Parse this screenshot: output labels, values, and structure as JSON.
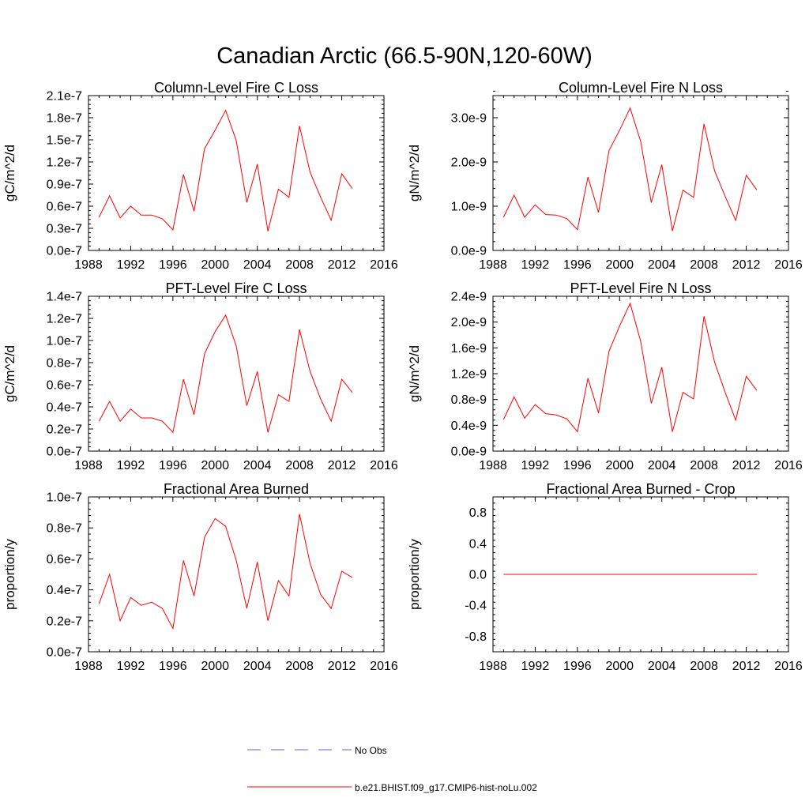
{
  "figure_title": "Canadian Arctic (66.5-90N,120-60W)",
  "legend": [
    {
      "label": "No Obs",
      "color": "#6666cc",
      "style": "dashed"
    },
    {
      "label": "b.e21.BHIST.f09_g17.CMIP6-hist-noLu.002",
      "color": "#ff0000",
      "style": "solid"
    }
  ],
  "chart_data": [
    {
      "type": "line",
      "title": "Column-Level Fire C Loss",
      "ylabel": "gC/m^2/d",
      "xlim": [
        1988,
        2016
      ],
      "xticks": [
        1988,
        1992,
        1996,
        2000,
        2004,
        2008,
        2012,
        2016
      ],
      "ylim": [
        0,
        2.1e-07
      ],
      "yticks": [
        0,
        3e-08,
        6e-08,
        9e-08,
        1.2e-07,
        1.5e-07,
        1.8e-07,
        2.1e-07
      ],
      "yticklabels": [
        "0.0e-7",
        "0.3e-7",
        "0.6e-7",
        "0.9e-7",
        "1.2e-7",
        "1.5e-7",
        "1.8e-7",
        "2.1e-7"
      ],
      "x": [
        1989,
        1990,
        1991,
        1992,
        1993,
        1994,
        1995,
        1996,
        1997,
        1998,
        1999,
        2000,
        2001,
        2002,
        2003,
        2004,
        2005,
        2006,
        2007,
        2008,
        2009,
        2010,
        2011,
        2012,
        2013
      ],
      "values": [
        4.5e-08,
        7.4e-08,
        4.4e-08,
        6e-08,
        4.8e-08,
        4.8e-08,
        4.3e-08,
        2.8e-08,
        1.03e-07,
        5.3e-08,
        1.38e-07,
        1.63e-07,
        1.9e-07,
        1.49e-07,
        6.5e-08,
        1.17e-07,
        2.6e-08,
        8.3e-08,
        7.2e-08,
        1.69e-07,
        1.06e-07,
        7.2e-08,
        4.1e-08,
        1.04e-07,
        8.4e-08
      ]
    },
    {
      "type": "line",
      "title": "Column-Level Fire N Loss",
      "ylabel": "gN/m^2/d",
      "xlim": [
        1988,
        2016
      ],
      "xticks": [
        1988,
        1992,
        1996,
        2000,
        2004,
        2008,
        2012,
        2016
      ],
      "ylim": [
        0,
        3.5e-09
      ],
      "yticks": [
        0,
        1e-09,
        2e-09,
        3e-09
      ],
      "yticklabels": [
        "0.0e-9",
        "1.0e-9",
        "2.0e-9",
        "3.0e-9"
      ],
      "x": [
        1989,
        1990,
        1991,
        1992,
        1993,
        1994,
        1995,
        1996,
        1997,
        1998,
        1999,
        2000,
        2001,
        2002,
        2003,
        2004,
        2005,
        2006,
        2007,
        2008,
        2009,
        2010,
        2011,
        2012,
        2013
      ],
      "values": [
        7.5e-10,
        1.25e-09,
        7.5e-10,
        1.03e-09,
        8.1e-10,
        8e-10,
        7.2e-10,
        4.7e-10,
        1.66e-09,
        8.6e-10,
        2.26e-09,
        2.72e-09,
        3.22e-09,
        2.46e-09,
        1.08e-09,
        1.94e-09,
        4.4e-10,
        1.36e-09,
        1.2e-09,
        2.86e-09,
        1.8e-09,
        1.22e-09,
        6.8e-10,
        1.7e-09,
        1.37e-09
      ]
    },
    {
      "type": "line",
      "title": "PFT-Level Fire C Loss",
      "ylabel": "gC/m^2/d",
      "xlim": [
        1988,
        2016
      ],
      "xticks": [
        1988,
        1992,
        1996,
        2000,
        2004,
        2008,
        2012,
        2016
      ],
      "ylim": [
        0,
        1.4e-07
      ],
      "yticks": [
        0,
        2e-08,
        4e-08,
        6e-08,
        8e-08,
        1e-07,
        1.2e-07,
        1.4e-07
      ],
      "yticklabels": [
        "0.0e-7",
        "0.2e-7",
        "0.4e-7",
        "0.6e-7",
        "0.8e-7",
        "1.0e-7",
        "1.2e-7",
        "1.4e-7"
      ],
      "x": [
        1989,
        1990,
        1991,
        1992,
        1993,
        1994,
        1995,
        1996,
        1997,
        1998,
        1999,
        2000,
        2001,
        2002,
        2003,
        2004,
        2005,
        2006,
        2007,
        2008,
        2009,
        2010,
        2011,
        2012,
        2013
      ],
      "values": [
        2.7e-08,
        4.5e-08,
        2.7e-08,
        3.8e-08,
        3e-08,
        3e-08,
        2.7e-08,
        1.7e-08,
        6.5e-08,
        3.3e-08,
        8.8e-08,
        1.08e-07,
        1.23e-07,
        9.5e-08,
        4.1e-08,
        7.2e-08,
        1.7e-08,
        5.1e-08,
        4.5e-08,
        1.1e-07,
        7.2e-08,
        4.7e-08,
        2.7e-08,
        6.5e-08,
        5.3e-08
      ]
    },
    {
      "type": "line",
      "title": "PFT-Level Fire N Loss",
      "ylabel": "gN/m^2/d",
      "xlim": [
        1988,
        2016
      ],
      "xticks": [
        1988,
        1992,
        1996,
        2000,
        2004,
        2008,
        2012,
        2016
      ],
      "ylim": [
        0,
        2.4e-09
      ],
      "yticks": [
        0,
        4e-10,
        8e-10,
        1.2e-09,
        1.6e-09,
        2e-09,
        2.4e-09
      ],
      "yticklabels": [
        "0.0e-9",
        "0.4e-9",
        "0.8e-9",
        "1.2e-9",
        "1.6e-9",
        "2.0e-9",
        "2.4e-9"
      ],
      "x": [
        1989,
        1990,
        1991,
        1992,
        1993,
        1994,
        1995,
        1996,
        1997,
        1998,
        1999,
        2000,
        2001,
        2002,
        2003,
        2004,
        2005,
        2006,
        2007,
        2008,
        2009,
        2010,
        2011,
        2012,
        2013
      ],
      "values": [
        4.9e-10,
        8.4e-10,
        5.1e-10,
        7.2e-10,
        5.8e-10,
        5.6e-10,
        5e-10,
        3e-10,
        1.13e-09,
        5.9e-10,
        1.55e-09,
        1.94e-09,
        2.29e-09,
        1.7e-09,
        7.4e-10,
        1.3e-09,
        3e-10,
        9.1e-10,
        8.1e-10,
        2.09e-09,
        1.38e-09,
        9.1e-10,
        4.8e-10,
        1.16e-09,
        9.4e-10
      ]
    },
    {
      "type": "line",
      "title": "Fractional Area Burned",
      "ylabel": "proportion/y",
      "xlim": [
        1988,
        2016
      ],
      "xticks": [
        1988,
        1992,
        1996,
        2000,
        2004,
        2008,
        2012,
        2016
      ],
      "ylim": [
        0,
        1e-07
      ],
      "yticks": [
        0,
        2e-08,
        4e-08,
        6e-08,
        8e-08,
        1e-07
      ],
      "yticklabels": [
        "0.0e-7",
        "0.2e-7",
        "0.4e-7",
        "0.6e-7",
        "0.8e-7",
        "1.0e-7"
      ],
      "x": [
        1989,
        1990,
        1991,
        1992,
        1993,
        1994,
        1995,
        1996,
        1997,
        1998,
        1999,
        2000,
        2001,
        2002,
        2003,
        2004,
        2005,
        2006,
        2007,
        2008,
        2009,
        2010,
        2011,
        2012,
        2013
      ],
      "values": [
        3.1e-08,
        5e-08,
        2e-08,
        3.5e-08,
        3e-08,
        3.2e-08,
        2.8e-08,
        1.5e-08,
        5.9e-08,
        3.6e-08,
        7.4e-08,
        8.6e-08,
        8.1e-08,
        5.9e-08,
        2.8e-08,
        5.8e-08,
        2e-08,
        4.6e-08,
        3.6e-08,
        8.9e-08,
        5.7e-08,
        3.7e-08,
        2.8e-08,
        5.2e-08,
        4.8e-08
      ]
    },
    {
      "type": "line",
      "title": "Fractional Area Burned - Crop",
      "ylabel": "proportion/y",
      "xlim": [
        1988,
        2016
      ],
      "xticks": [
        1988,
        1992,
        1996,
        2000,
        2004,
        2008,
        2012,
        2016
      ],
      "ylim": [
        -1.0,
        1.0
      ],
      "yticks": [
        -0.8,
        -0.4,
        0.0,
        0.4,
        0.8
      ],
      "yticklabels": [
        "-0.8",
        "-0.4",
        "0.0",
        "0.4",
        "0.8"
      ],
      "x": [
        1989,
        1990,
        1991,
        1992,
        1993,
        1994,
        1995,
        1996,
        1997,
        1998,
        1999,
        2000,
        2001,
        2002,
        2003,
        2004,
        2005,
        2006,
        2007,
        2008,
        2009,
        2010,
        2011,
        2012,
        2013
      ],
      "values": [
        0,
        0,
        0,
        0,
        0,
        0,
        0,
        0,
        0,
        0,
        0,
        0,
        0,
        0,
        0,
        0,
        0,
        0,
        0,
        0,
        0,
        0,
        0,
        0,
        0
      ]
    }
  ]
}
